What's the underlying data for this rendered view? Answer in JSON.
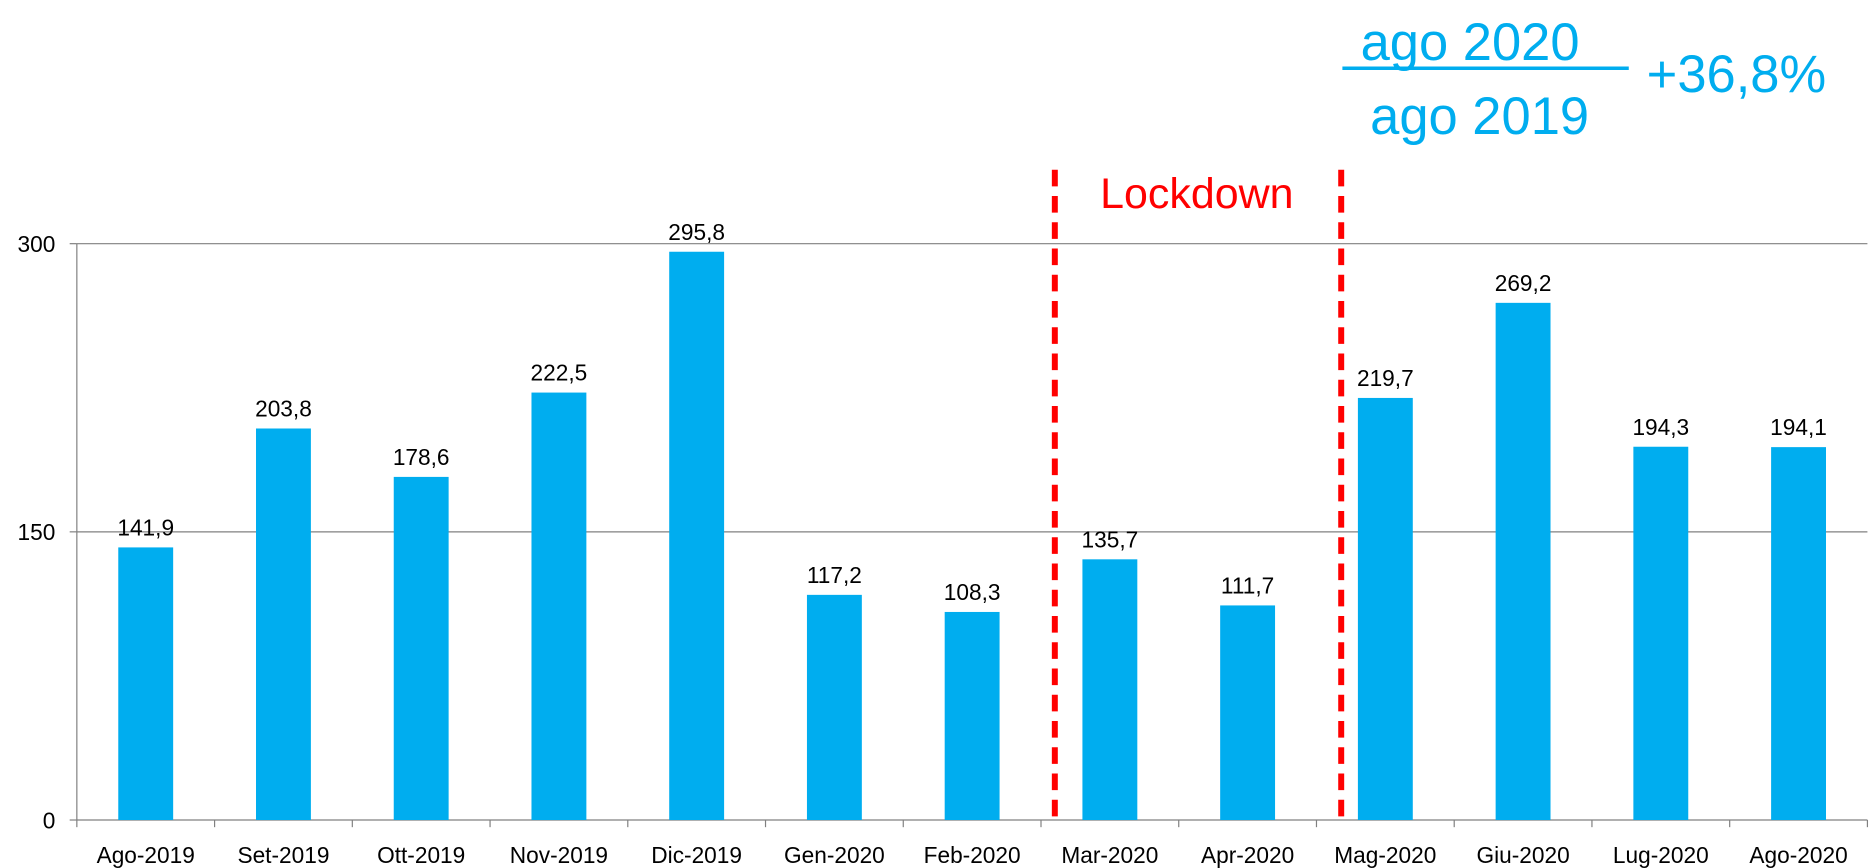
{
  "chart_data": {
    "type": "bar",
    "categories": [
      "Ago-2019",
      "Set-2019",
      "Ott-2019",
      "Nov-2019",
      "Dic-2019",
      "Gen-2020",
      "Feb-2020",
      "Mar-2020",
      "Apr-2020",
      "Mag-2020",
      "Giu-2020",
      "Lug-2020",
      "Ago-2020"
    ],
    "values": [
      141.9,
      203.8,
      178.6,
      222.5,
      295.8,
      117.2,
      108.3,
      135.7,
      111.7,
      219.7,
      269.2,
      194.3,
      194.1
    ],
    "value_labels": [
      "141,9",
      "203,8",
      "178,6",
      "222,5",
      "295,8",
      "117,2",
      "108,3",
      "135,7",
      "111,7",
      "219,7",
      "269,2",
      "194,3",
      "194,1"
    ],
    "color": "#00adef",
    "ylim": [
      0,
      300
    ],
    "yticks": [
      0,
      150,
      300
    ],
    "grid": true,
    "annotations": {
      "lockdown": "Lockdown",
      "ratio_numerator": "ago 2020",
      "ratio_denominator": "ago 2019",
      "ratio_change": "+36,8%"
    }
  }
}
